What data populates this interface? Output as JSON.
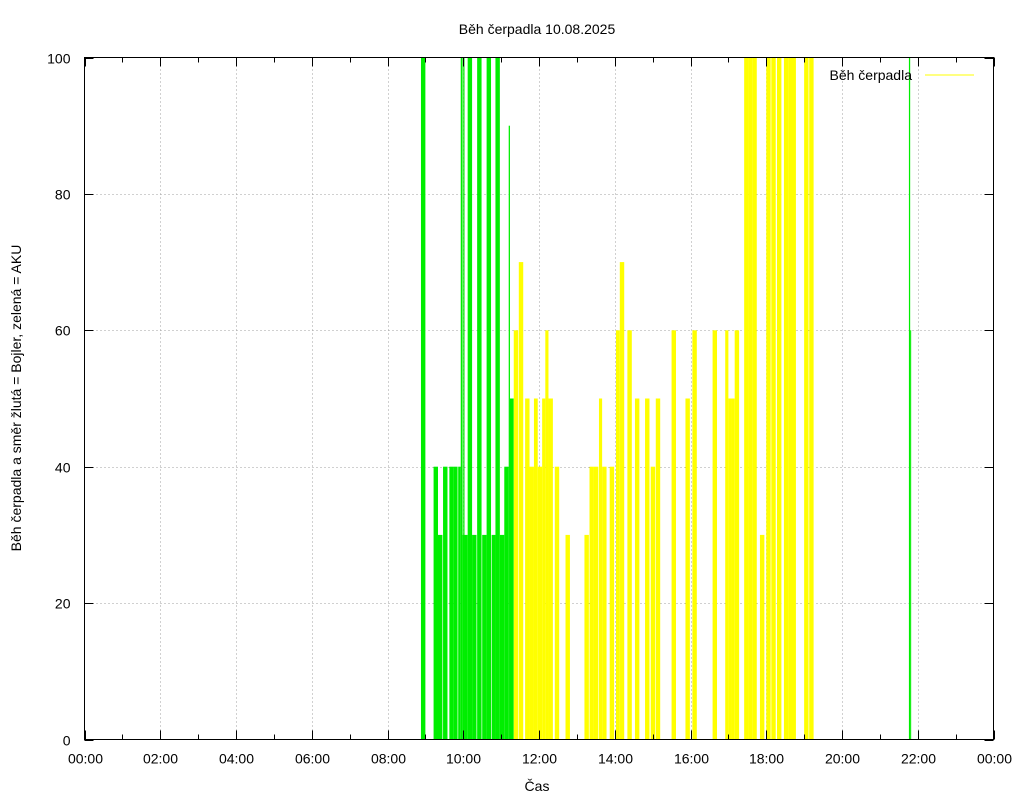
{
  "chart_data": {
    "type": "bar",
    "title": "Běh čerpadla 10.08.2025",
    "xlabel": "Čas",
    "ylabel": "Běh čerpadla a směr žlutá = Bojler, zelená = AKU",
    "xlim": [
      "00:00",
      "24:00"
    ],
    "ylim": [
      0,
      100
    ],
    "x_ticks": [
      "00:00",
      "02:00",
      "04:00",
      "06:00",
      "08:00",
      "10:00",
      "12:00",
      "14:00",
      "16:00",
      "18:00",
      "20:00",
      "22:00",
      "00:00"
    ],
    "y_ticks": [
      "0",
      "20",
      "40",
      "60",
      "80",
      "100"
    ],
    "grid": true,
    "legend": {
      "position": "top-right",
      "entries": [
        "Běh čerpadla"
      ]
    },
    "colors": {
      "boiler": "#ffff00",
      "aku": "#00ee00"
    },
    "series": [
      {
        "name": "Běh čerpadla",
        "x": [
          "08:53",
          "09:13",
          "09:20",
          "09:28",
          "09:38",
          "09:44",
          "09:52",
          "09:56",
          "09:59",
          "10:00",
          "10:02",
          "10:07",
          "10:14",
          "10:22",
          "10:30",
          "10:37",
          "10:45",
          "10:51",
          "10:58",
          "11:05",
          "11:12",
          "11:14",
          "11:20",
          "11:28",
          "11:38",
          "11:45",
          "11:52",
          "11:58",
          "12:05",
          "12:10",
          "12:15",
          "12:25",
          "12:42",
          "13:12",
          "13:20",
          "13:27",
          "13:35",
          "13:40",
          "13:52",
          "14:02",
          "14:08",
          "14:20",
          "14:32",
          "14:48",
          "14:57",
          "15:05",
          "15:30",
          "15:52",
          "16:03",
          "16:35",
          "16:55",
          "17:00",
          "17:05",
          "17:10",
          "17:25",
          "17:32",
          "17:38",
          "17:50",
          "18:00",
          "18:08",
          "18:17",
          "18:28",
          "18:35",
          "18:40",
          "19:00",
          "19:08",
          "21:46",
          "21:48"
        ],
        "y": [
          100,
          40,
          30,
          40,
          40,
          40,
          40,
          100,
          30,
          100,
          30,
          100,
          30,
          100,
          30,
          100,
          30,
          100,
          30,
          40,
          90,
          50,
          60,
          70,
          50,
          40,
          50,
          40,
          50,
          60,
          50,
          40,
          30,
          30,
          40,
          40,
          50,
          40,
          40,
          60,
          70,
          60,
          50,
          50,
          40,
          50,
          60,
          50,
          60,
          60,
          60,
          50,
          50,
          60,
          100,
          100,
          100,
          30,
          100,
          100,
          100,
          100,
          100,
          100,
          100,
          100,
          100,
          60
        ],
        "color_code": [
          "A",
          "A",
          "A",
          "A",
          "A",
          "A",
          "A",
          "A",
          "A",
          "A",
          "A",
          "A",
          "A",
          "A",
          "A",
          "A",
          "A",
          "A",
          "A",
          "A",
          "A",
          "A",
          "B",
          "B",
          "B",
          "B",
          "B",
          "B",
          "B",
          "B",
          "B",
          "B",
          "B",
          "B",
          "B",
          "B",
          "B",
          "B",
          "B",
          "B",
          "B",
          "B",
          "B",
          "B",
          "B",
          "B",
          "B",
          "B",
          "B",
          "B",
          "B",
          "B",
          "B",
          "B",
          "B",
          "B",
          "B",
          "B",
          "B",
          "B",
          "B",
          "B",
          "B",
          "B",
          "B",
          "B",
          "A",
          "A"
        ]
      }
    ]
  }
}
